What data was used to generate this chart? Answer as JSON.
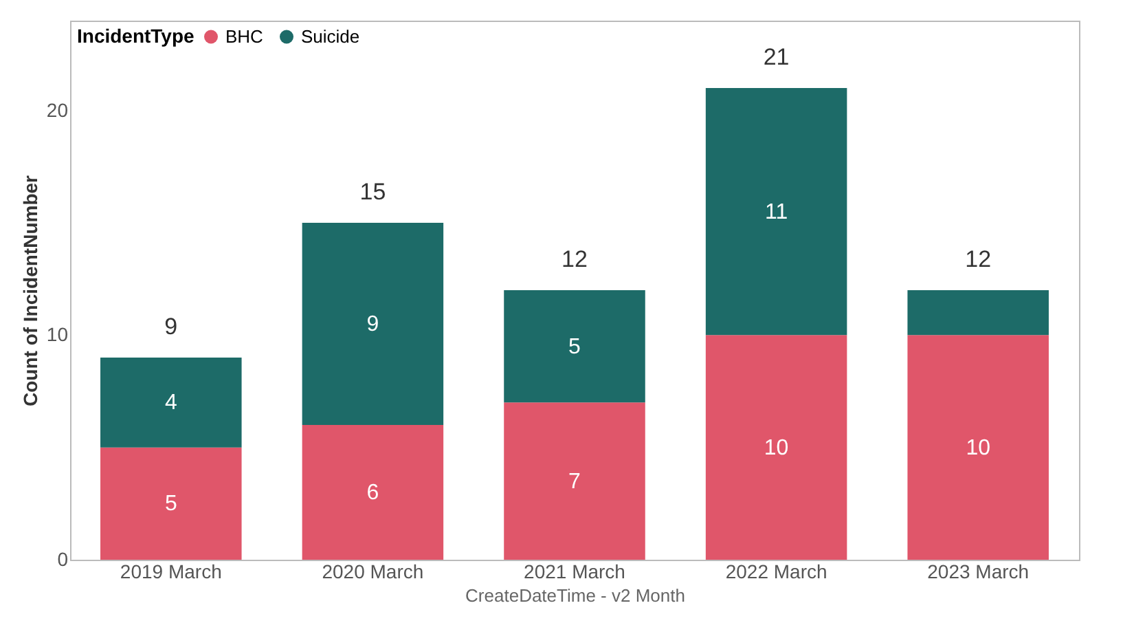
{
  "chart_data": {
    "type": "bar",
    "stacked": true,
    "xlabel": "CreateDateTime - v2 Month",
    "ylabel": "Count of IncidentNumber",
    "legend_title": "IncidentType",
    "legend": "top left",
    "categories": [
      "2019 March",
      "2020 March",
      "2021 March",
      "2022 March",
      "2023 March"
    ],
    "series": [
      {
        "name": "BHC",
        "color": "#e0566a",
        "values": [
          5,
          6,
          7,
          10,
          10
        ],
        "value_labels": [
          "5",
          "6",
          "7",
          "10",
          "10"
        ]
      },
      {
        "name": "Suicide",
        "color": "#1d6b68",
        "values": [
          4,
          9,
          5,
          11,
          2
        ],
        "value_labels": [
          "4",
          "9",
          "5",
          "11",
          null
        ]
      }
    ],
    "totals": [
      "9",
      "15",
      "12",
      "21",
      "12"
    ],
    "ylim": [
      0,
      24
    ],
    "yticks": [
      0,
      10,
      20
    ],
    "grid": false
  }
}
